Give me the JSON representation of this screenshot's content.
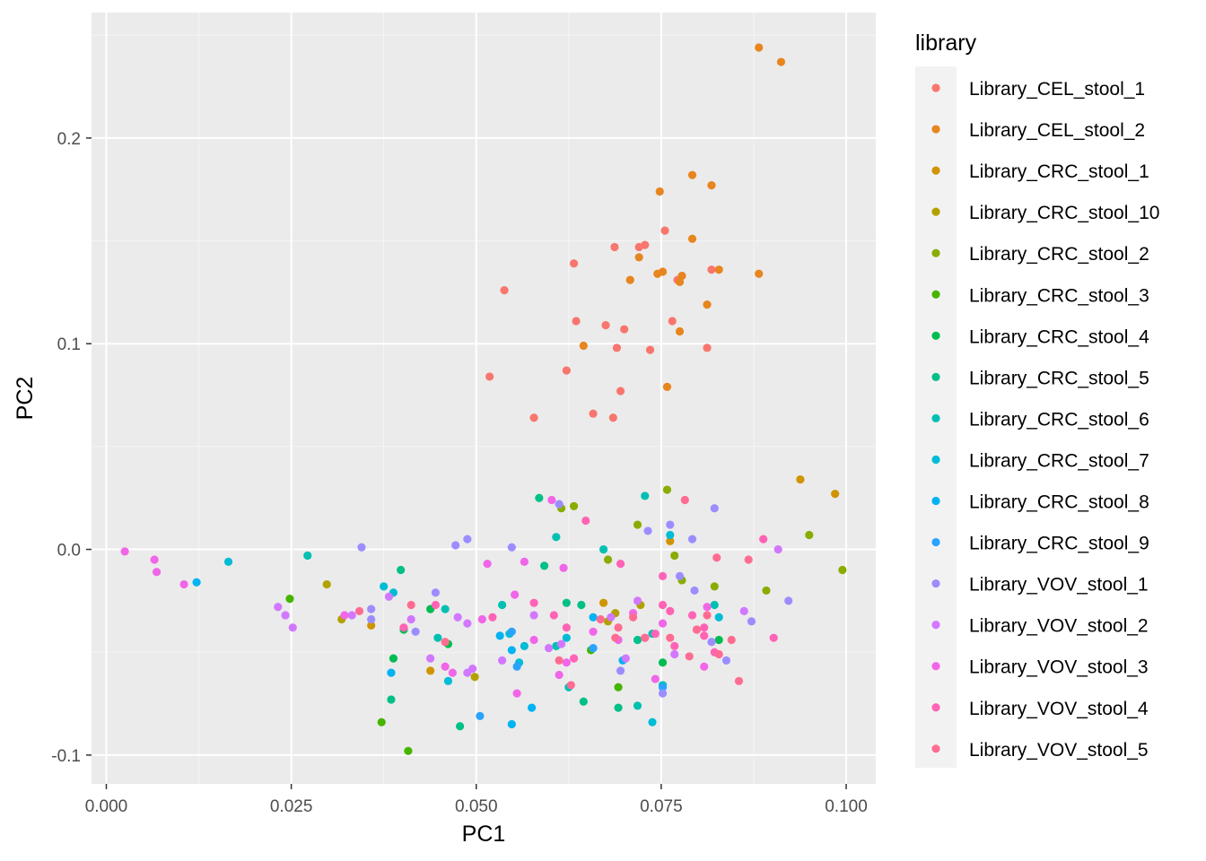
{
  "chart_data": {
    "type": "scatter",
    "title": "",
    "xlabel": "PC1",
    "ylabel": "PC2",
    "xlim": [
      -0.002,
      0.104
    ],
    "ylim": [
      -0.114,
      0.261
    ],
    "x_ticks": [
      0.0,
      0.025,
      0.05,
      0.075,
      0.1
    ],
    "x_tick_labels": [
      "0.000",
      "0.025",
      "0.050",
      "0.075",
      "0.100"
    ],
    "y_ticks": [
      -0.1,
      0.0,
      0.1,
      0.2
    ],
    "y_tick_labels": [
      "-0.1",
      "0.0",
      "0.1",
      "0.2"
    ],
    "grid": true,
    "legend": {
      "title": "library",
      "placement": "right"
    },
    "series": [
      {
        "name": "Library_CEL_stool_1",
        "color": "#F8766D",
        "points": [
          [
            0.0538,
            0.126
          ],
          [
            0.0518,
            0.084
          ],
          [
            0.0578,
            0.064
          ],
          [
            0.0632,
            0.139
          ],
          [
            0.0635,
            0.111
          ],
          [
            0.0622,
            0.087
          ],
          [
            0.0675,
            0.109
          ],
          [
            0.0687,
            0.147
          ],
          [
            0.069,
            0.098
          ],
          [
            0.0695,
            0.077
          ],
          [
            0.07,
            0.107
          ],
          [
            0.0685,
            0.064
          ],
          [
            0.072,
            0.147
          ],
          [
            0.0728,
            0.148
          ],
          [
            0.0735,
            0.097
          ],
          [
            0.0755,
            0.155
          ],
          [
            0.0765,
            0.111
          ],
          [
            0.0772,
            0.131
          ],
          [
            0.0812,
            0.098
          ],
          [
            0.0818,
            0.136
          ],
          [
            0.0658,
            0.066
          ]
        ]
      },
      {
        "name": "Library_CEL_stool_2",
        "color": "#E7851E",
        "points": [
          [
            0.0882,
            0.244
          ],
          [
            0.0912,
            0.237
          ],
          [
            0.0792,
            0.182
          ],
          [
            0.0818,
            0.177
          ],
          [
            0.0748,
            0.174
          ],
          [
            0.0792,
            0.151
          ],
          [
            0.072,
            0.142
          ],
          [
            0.0708,
            0.131
          ],
          [
            0.0745,
            0.134
          ],
          [
            0.0752,
            0.135
          ],
          [
            0.0778,
            0.133
          ],
          [
            0.0775,
            0.13
          ],
          [
            0.0828,
            0.136
          ],
          [
            0.0882,
            0.134
          ],
          [
            0.0812,
            0.119
          ],
          [
            0.0775,
            0.106
          ],
          [
            0.0645,
            0.099
          ],
          [
            0.0758,
            0.079
          ]
        ]
      },
      {
        "name": "Library_CRC_stool_1",
        "color": "#D09400",
        "points": [
          [
            0.0938,
            0.034
          ],
          [
            0.0985,
            0.027
          ],
          [
            0.0762,
            0.004
          ],
          [
            0.0358,
            -0.037
          ],
          [
            0.0672,
            -0.026
          ],
          [
            0.0438,
            -0.059
          ]
        ]
      },
      {
        "name": "Library_CRC_stool_10",
        "color": "#B2A100",
        "points": [
          [
            0.0298,
            -0.017
          ],
          [
            0.0318,
            -0.034
          ],
          [
            0.0722,
            -0.027
          ],
          [
            0.0498,
            -0.062
          ],
          [
            0.0678,
            -0.035
          ],
          [
            0.0688,
            -0.031
          ]
        ]
      },
      {
        "name": "Library_CRC_stool_2",
        "color": "#89AC00",
        "points": [
          [
            0.0995,
            -0.01
          ],
          [
            0.095,
            0.007
          ],
          [
            0.0892,
            -0.02
          ],
          [
            0.0758,
            0.029
          ],
          [
            0.0778,
            -0.015
          ],
          [
            0.0822,
            -0.018
          ],
          [
            0.0718,
            0.012
          ],
          [
            0.0632,
            0.021
          ],
          [
            0.0615,
            0.02
          ],
          [
            0.0678,
            -0.005
          ],
          [
            0.0768,
            -0.003
          ]
        ]
      },
      {
        "name": "Library_CRC_stool_3",
        "color": "#45B500",
        "points": [
          [
            0.0372,
            -0.084
          ],
          [
            0.0408,
            -0.098
          ],
          [
            0.0248,
            -0.024
          ],
          [
            0.0692,
            -0.067
          ],
          [
            0.0655,
            -0.049
          ]
        ]
      },
      {
        "name": "Library_CRC_stool_4",
        "color": "#00BC51",
        "points": [
          [
            0.0402,
            -0.039
          ],
          [
            0.0388,
            -0.053
          ],
          [
            0.0462,
            -0.046
          ],
          [
            0.0438,
            -0.029
          ],
          [
            0.0752,
            -0.055
          ],
          [
            0.0828,
            -0.044
          ]
        ]
      },
      {
        "name": "Library_CRC_stool_5",
        "color": "#00C087",
        "points": [
          [
            0.0398,
            -0.01
          ],
          [
            0.0385,
            -0.073
          ],
          [
            0.0585,
            0.025
          ],
          [
            0.0592,
            -0.008
          ],
          [
            0.0478,
            -0.086
          ],
          [
            0.0645,
            -0.074
          ],
          [
            0.0692,
            -0.077
          ],
          [
            0.0622,
            -0.026
          ],
          [
            0.0642,
            -0.027
          ],
          [
            0.0718,
            -0.044
          ]
        ]
      },
      {
        "name": "Library_CRC_stool_6",
        "color": "#00C0B2",
        "points": [
          [
            0.0272,
            -0.003
          ],
          [
            0.0608,
            0.006
          ],
          [
            0.0672,
            0.0
          ],
          [
            0.0718,
            -0.076
          ],
          [
            0.0728,
            0.026
          ],
          [
            0.0608,
            -0.047
          ],
          [
            0.0625,
            -0.067
          ],
          [
            0.0535,
            -0.027
          ],
          [
            0.0822,
            -0.027
          ],
          [
            0.0458,
            -0.029
          ],
          [
            0.0752,
            -0.066
          ],
          [
            0.0448,
            -0.043
          ],
          [
            0.0738,
            -0.041
          ]
        ]
      },
      {
        "name": "Library_CRC_stool_7",
        "color": "#00BCD6",
        "points": [
          [
            0.0165,
            -0.006
          ],
          [
            0.0375,
            -0.018
          ],
          [
            0.0388,
            -0.021
          ],
          [
            0.0462,
            -0.064
          ],
          [
            0.0565,
            -0.047
          ],
          [
            0.0558,
            -0.055
          ],
          [
            0.0545,
            -0.041
          ],
          [
            0.0622,
            -0.043
          ],
          [
            0.0738,
            -0.084
          ],
          [
            0.0762,
            0.007
          ],
          [
            0.0828,
            -0.033
          ]
        ]
      },
      {
        "name": "Library_CRC_stool_8",
        "color": "#00B3F2",
        "points": [
          [
            0.0122,
            -0.016
          ],
          [
            0.0385,
            -0.06
          ],
          [
            0.0548,
            -0.085
          ],
          [
            0.0658,
            -0.033
          ],
          [
            0.0532,
            -0.042
          ],
          [
            0.0548,
            -0.049
          ],
          [
            0.0575,
            -0.077
          ],
          [
            0.0698,
            -0.054
          ]
        ]
      },
      {
        "name": "Library_CRC_stool_9",
        "color": "#29A3FF",
        "points": [
          [
            0.0505,
            -0.081
          ],
          [
            0.0548,
            -0.04
          ],
          [
            0.0658,
            -0.048
          ],
          [
            0.0752,
            -0.067
          ],
          [
            0.0555,
            -0.057
          ]
        ]
      },
      {
        "name": "Library_VOV_stool_1",
        "color": "#9C8DFF",
        "points": [
          [
            0.0345,
            0.001
          ],
          [
            0.0472,
            0.002
          ],
          [
            0.0488,
            0.005
          ],
          [
            0.0548,
            0.001
          ],
          [
            0.0612,
            0.022
          ],
          [
            0.0732,
            0.009
          ],
          [
            0.0762,
            0.012
          ],
          [
            0.0792,
            0.005
          ],
          [
            0.0822,
            0.02
          ],
          [
            0.0445,
            -0.021
          ],
          [
            0.0358,
            -0.029
          ],
          [
            0.0775,
            -0.013
          ],
          [
            0.0795,
            -0.02
          ],
          [
            0.0922,
            -0.025
          ],
          [
            0.0818,
            -0.045
          ],
          [
            0.0872,
            -0.035
          ],
          [
            0.0838,
            -0.054
          ],
          [
            0.0695,
            -0.059
          ],
          [
            0.0752,
            -0.07
          ],
          [
            0.0358,
            -0.034
          ],
          [
            0.0418,
            -0.04
          ]
        ]
      },
      {
        "name": "Library_VOV_stool_2",
        "color": "#D277FF",
        "points": [
          [
            0.0232,
            -0.028
          ],
          [
            0.0242,
            -0.032
          ],
          [
            0.0252,
            -0.038
          ],
          [
            0.0382,
            -0.023
          ],
          [
            0.0412,
            -0.034
          ],
          [
            0.0438,
            -0.053
          ],
          [
            0.0475,
            -0.033
          ],
          [
            0.0488,
            -0.036
          ],
          [
            0.0495,
            -0.058
          ],
          [
            0.0535,
            -0.054
          ],
          [
            0.0578,
            -0.032
          ],
          [
            0.0598,
            -0.048
          ],
          [
            0.0615,
            -0.046
          ],
          [
            0.0682,
            -0.033
          ],
          [
            0.0718,
            -0.025
          ],
          [
            0.0702,
            -0.053
          ],
          [
            0.0768,
            -0.051
          ],
          [
            0.0798,
            -0.039
          ],
          [
            0.0862,
            -0.03
          ],
          [
            0.0908,
            0.0
          ],
          [
            0.0332,
            -0.032
          ],
          [
            0.0488,
            -0.06
          ]
        ]
      },
      {
        "name": "Library_VOV_stool_3",
        "color": "#F166E8",
        "points": [
          [
            0.0065,
            -0.005
          ],
          [
            0.0068,
            -0.011
          ],
          [
            0.0025,
            -0.001
          ],
          [
            0.0105,
            -0.017
          ],
          [
            0.0322,
            -0.032
          ],
          [
            0.0458,
            -0.057
          ],
          [
            0.0468,
            -0.06
          ],
          [
            0.0515,
            -0.007
          ],
          [
            0.0552,
            -0.022
          ],
          [
            0.0555,
            -0.07
          ],
          [
            0.0565,
            -0.006
          ],
          [
            0.0602,
            0.024
          ],
          [
            0.0612,
            -0.061
          ],
          [
            0.0618,
            -0.009
          ],
          [
            0.0622,
            -0.055
          ],
          [
            0.0658,
            -0.04
          ],
          [
            0.0692,
            -0.044
          ],
          [
            0.0712,
            -0.031
          ],
          [
            0.0742,
            -0.063
          ],
          [
            0.0752,
            -0.036
          ],
          [
            0.0808,
            -0.057
          ],
          [
            0.0812,
            -0.028
          ],
          [
            0.0578,
            -0.044
          ],
          [
            0.0508,
            -0.034
          ]
        ]
      },
      {
        "name": "Library_VOV_stool_4",
        "color": "#FF63B6",
        "points": [
          [
            0.0402,
            -0.038
          ],
          [
            0.0445,
            -0.027
          ],
          [
            0.0522,
            -0.033
          ],
          [
            0.0578,
            -0.026
          ],
          [
            0.0605,
            -0.032
          ],
          [
            0.0622,
            -0.038
          ],
          [
            0.0632,
            -0.053
          ],
          [
            0.0648,
            0.014
          ],
          [
            0.0695,
            -0.007
          ],
          [
            0.0728,
            -0.043
          ],
          [
            0.0742,
            -0.041
          ],
          [
            0.0752,
            -0.027
          ],
          [
            0.0762,
            -0.03
          ],
          [
            0.0768,
            -0.047
          ],
          [
            0.0792,
            -0.032
          ],
          [
            0.0808,
            -0.042
          ],
          [
            0.0822,
            -0.05
          ],
          [
            0.0888,
            0.005
          ],
          [
            0.0902,
            -0.043
          ],
          [
            0.0752,
            -0.013
          ],
          [
            0.0808,
            -0.038
          ]
        ]
      },
      {
        "name": "Library_VOV_stool_5",
        "color": "#FF6C91",
        "points": [
          [
            0.0342,
            -0.03
          ],
          [
            0.0412,
            -0.027
          ],
          [
            0.0458,
            -0.045
          ],
          [
            0.0612,
            -0.054
          ],
          [
            0.0628,
            -0.066
          ],
          [
            0.0668,
            -0.034
          ],
          [
            0.0688,
            -0.043
          ],
          [
            0.0712,
            -0.033
          ],
          [
            0.0728,
            -0.043
          ],
          [
            0.0762,
            -0.043
          ],
          [
            0.0788,
            -0.052
          ],
          [
            0.0812,
            -0.032
          ],
          [
            0.0825,
            -0.004
          ],
          [
            0.0845,
            -0.044
          ],
          [
            0.0855,
            -0.064
          ],
          [
            0.0868,
            -0.005
          ],
          [
            0.0782,
            0.024
          ],
          [
            0.0798,
            -0.039
          ],
          [
            0.0828,
            -0.051
          ],
          [
            0.0692,
            -0.038
          ]
        ]
      }
    ]
  }
}
